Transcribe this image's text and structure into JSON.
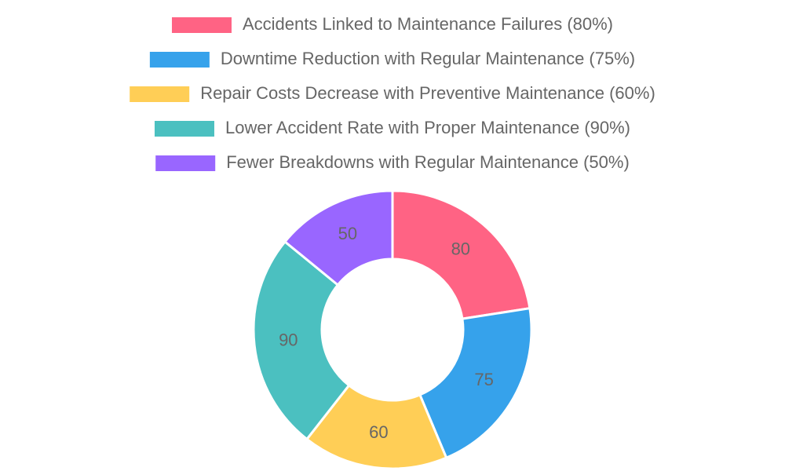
{
  "chart_data": {
    "type": "doughnut",
    "categories": [
      "Accidents Linked to Maintenance Failures (80%)",
      "Downtime Reduction with Regular Maintenance (75%)",
      "Repair Costs Decrease with Preventive Maintenance (60%)",
      "Lower Accident Rate with Proper Maintenance (90%)",
      "Fewer Breakdowns with Regular Maintenance (50%)"
    ],
    "values": [
      80,
      75,
      60,
      90,
      50
    ],
    "colors": [
      "#ff6384",
      "#36a2eb",
      "#ffce56",
      "#4bc0c0",
      "#9966ff"
    ],
    "legend": "top"
  }
}
